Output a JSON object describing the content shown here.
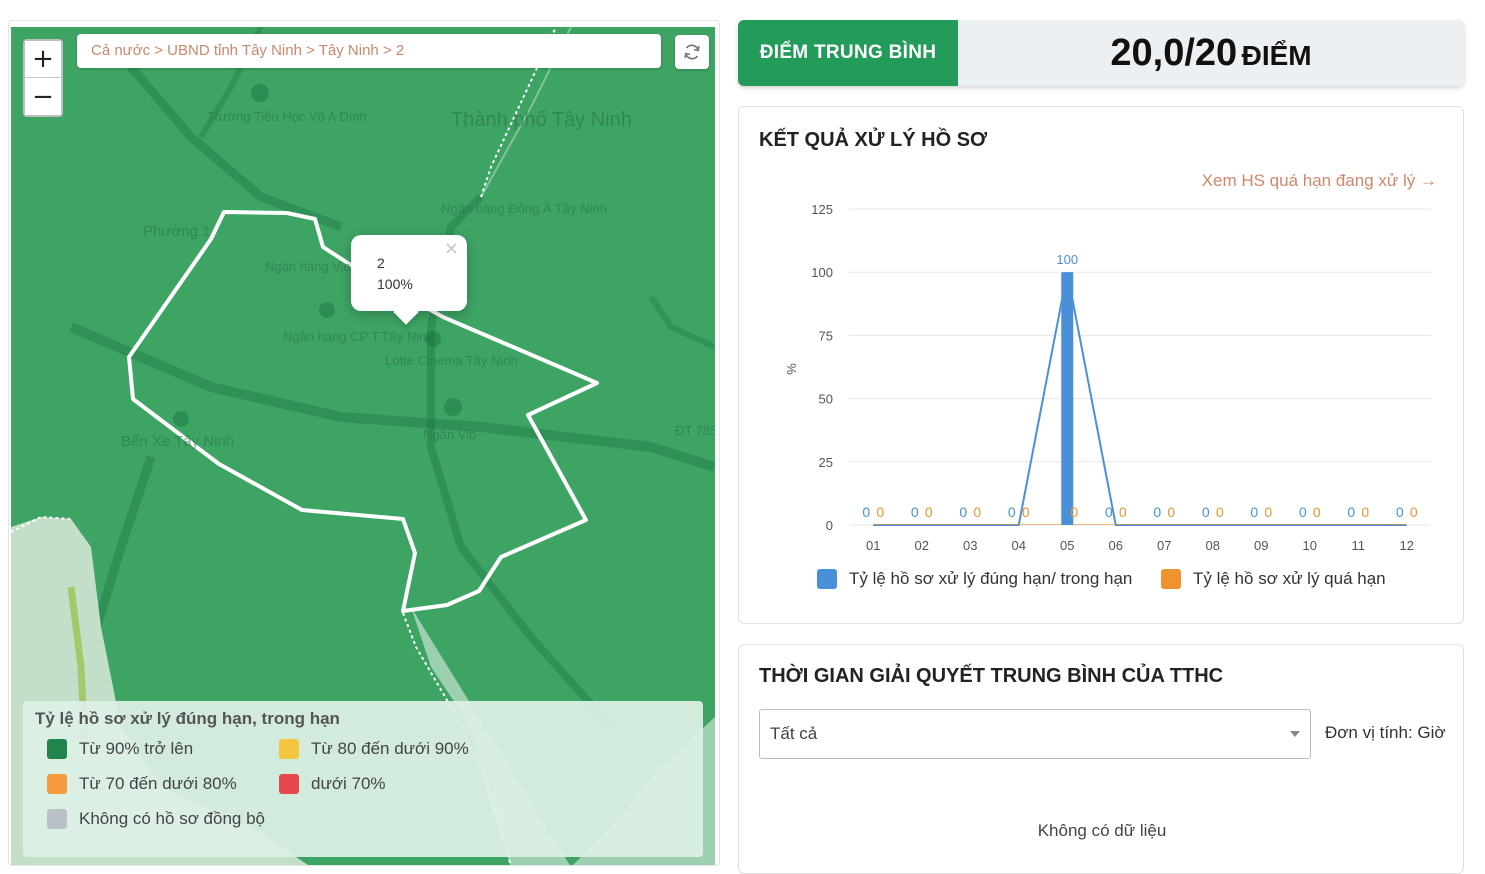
{
  "map": {
    "breadcrumb": "Cả nước > UBND tỉnh Tây Ninh > Tây Ninh > 2",
    "zoom_in": "+",
    "zoom_out": "−",
    "refresh_icon": "refresh-icon",
    "popup": {
      "close": "×",
      "name": "2",
      "percent": "100%"
    },
    "place_labels": {
      "city": "Thành phố Tây Ninh",
      "school": "Trường Tiểu Học Võ A Dính",
      "ward": "Phường 1",
      "bank": "Ngân hàng Vietin Tây Ninh",
      "agribank": "Ngân hàng Đông Á Tây Ninh",
      "bank2": "Ngân hàng CP T.Tây Ninh",
      "cinema": "Lotte Cinema Tây Ninh",
      "bus": "Bến Xe Tây Ninh",
      "road": "ĐT 785",
      "ngan": "Ngân Vib"
    },
    "legend": {
      "title": "Tỷ lệ hồ sơ xử lý đúng hạn, trong hạn",
      "items": [
        {
          "label": "Từ 90% trở lên",
          "color": "#22844d"
        },
        {
          "label": "Từ 80 đến dưới 90%",
          "color": "#f2c641"
        },
        {
          "label": "Từ 70 đến dưới 80%",
          "color": "#f59a3d"
        },
        {
          "label": "dưới 70%",
          "color": "#e5484d"
        },
        {
          "label": "Không có hồ sơ đồng bộ",
          "color": "#b9c1c6"
        }
      ]
    }
  },
  "score": {
    "label": "ĐIỂM TRUNG BÌNH",
    "value": "20,0/20",
    "unit": "ĐIỂM"
  },
  "results": {
    "title": "KẾT QUẢ XỬ LÝ HỒ SƠ",
    "overdue_link": "Xem HS quá hạn đang xử lý →",
    "chart_data": {
      "type": "bar",
      "categories": [
        "01",
        "02",
        "03",
        "04",
        "05",
        "06",
        "07",
        "08",
        "09",
        "10",
        "11",
        "12"
      ],
      "series": [
        {
          "name": "Tỷ lệ hồ sơ xử lý đúng hạn/ trong hạn",
          "color": "#4a90d9",
          "values": [
            0,
            0,
            0,
            0,
            100,
            0,
            0,
            0,
            0,
            0,
            0,
            0
          ]
        },
        {
          "name": "Tỷ lệ hồ sơ xử lý quá hạn",
          "color": "#f0922e",
          "values": [
            0,
            0,
            0,
            0,
            0,
            0,
            0,
            0,
            0,
            0,
            0,
            0
          ]
        }
      ],
      "ylabel": "%",
      "ylim": [
        0,
        125
      ],
      "yticks": [
        0,
        25,
        50,
        75,
        100,
        125
      ],
      "grid": true,
      "legend": "bottom"
    }
  },
  "time": {
    "title": "THỜI GIAN GIẢI QUYẾT TRUNG BÌNH CỦA TTHC",
    "select_value": "Tất cả",
    "unit_label": "Đơn vị tính: Giờ",
    "no_data": "Không có dữ liệu"
  }
}
